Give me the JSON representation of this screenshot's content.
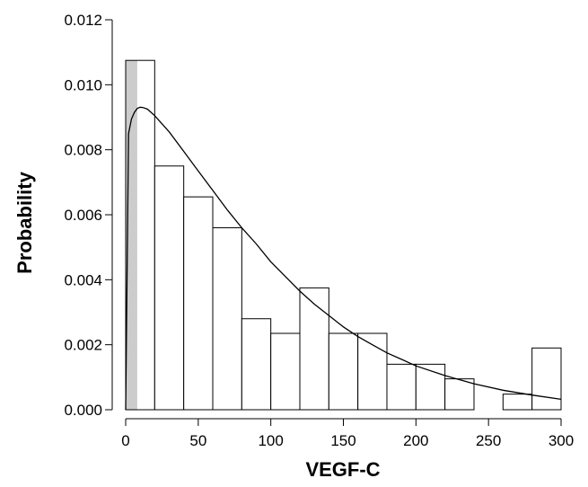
{
  "chart_data": {
    "type": "bar",
    "subtype": "histogram",
    "xlabel": "VEGF-C",
    "ylabel": "Probability",
    "xlim": [
      0,
      300
    ],
    "ylim": [
      0,
      0.012
    ],
    "x_ticks": [
      0,
      50,
      100,
      150,
      200,
      250,
      300
    ],
    "x_tick_labels": [
      "0",
      "50",
      "100",
      "150",
      "200",
      "250",
      "300"
    ],
    "y_ticks": [
      0,
      0.002,
      0.004,
      0.006,
      0.008,
      0.01,
      0.012
    ],
    "y_tick_labels": [
      "0.000",
      "0.002",
      "0.004",
      "0.006",
      "0.008",
      "0.010",
      "0.012"
    ],
    "grid": false,
    "bins": [
      {
        "x0": 0,
        "x1": 20,
        "value": 0.01075
      },
      {
        "x0": 20,
        "x1": 40,
        "value": 0.0075
      },
      {
        "x0": 40,
        "x1": 60,
        "value": 0.00655
      },
      {
        "x0": 60,
        "x1": 80,
        "value": 0.0056
      },
      {
        "x0": 80,
        "x1": 100,
        "value": 0.0028
      },
      {
        "x0": 100,
        "x1": 120,
        "value": 0.00235
      },
      {
        "x0": 120,
        "x1": 140,
        "value": 0.00375
      },
      {
        "x0": 140,
        "x1": 160,
        "value": 0.00235
      },
      {
        "x0": 160,
        "x1": 180,
        "value": 0.00235
      },
      {
        "x0": 180,
        "x1": 200,
        "value": 0.0014
      },
      {
        "x0": 200,
        "x1": 220,
        "value": 0.0014
      },
      {
        "x0": 220,
        "x1": 240,
        "value": 0.00095
      },
      {
        "x0": 240,
        "x1": 260,
        "value": 0.0
      },
      {
        "x0": 260,
        "x1": 280,
        "value": 0.00048
      },
      {
        "x0": 280,
        "x1": 300,
        "value": 0.0019
      }
    ],
    "shaded_region": {
      "x0": 0,
      "x1": 8,
      "value": 0.01075,
      "color": "#cccccc"
    },
    "curve": {
      "type": "line",
      "x": [
        0,
        2,
        4,
        6,
        8,
        10,
        12,
        15,
        20,
        30,
        40,
        50,
        60,
        70,
        80,
        90,
        100,
        110,
        120,
        130,
        140,
        150,
        160,
        170,
        180,
        190,
        200,
        220,
        240,
        260,
        280,
        300
      ],
      "y": [
        0,
        0.0085,
        0.00895,
        0.00915,
        0.00927,
        0.00931,
        0.0093,
        0.00925,
        0.00905,
        0.00855,
        0.00795,
        0.00735,
        0.00675,
        0.00615,
        0.0056,
        0.0051,
        0.00455,
        0.0041,
        0.00365,
        0.00325,
        0.0029,
        0.00255,
        0.00225,
        0.002,
        0.00175,
        0.00155,
        0.00135,
        0.00105,
        0.0008,
        0.0006,
        0.00045,
        0.00032
      ]
    },
    "colors": {
      "bar_fill": "#ffffff",
      "bar_stroke": "#000000",
      "shade": "#cccccc",
      "curve": "#000000"
    }
  }
}
